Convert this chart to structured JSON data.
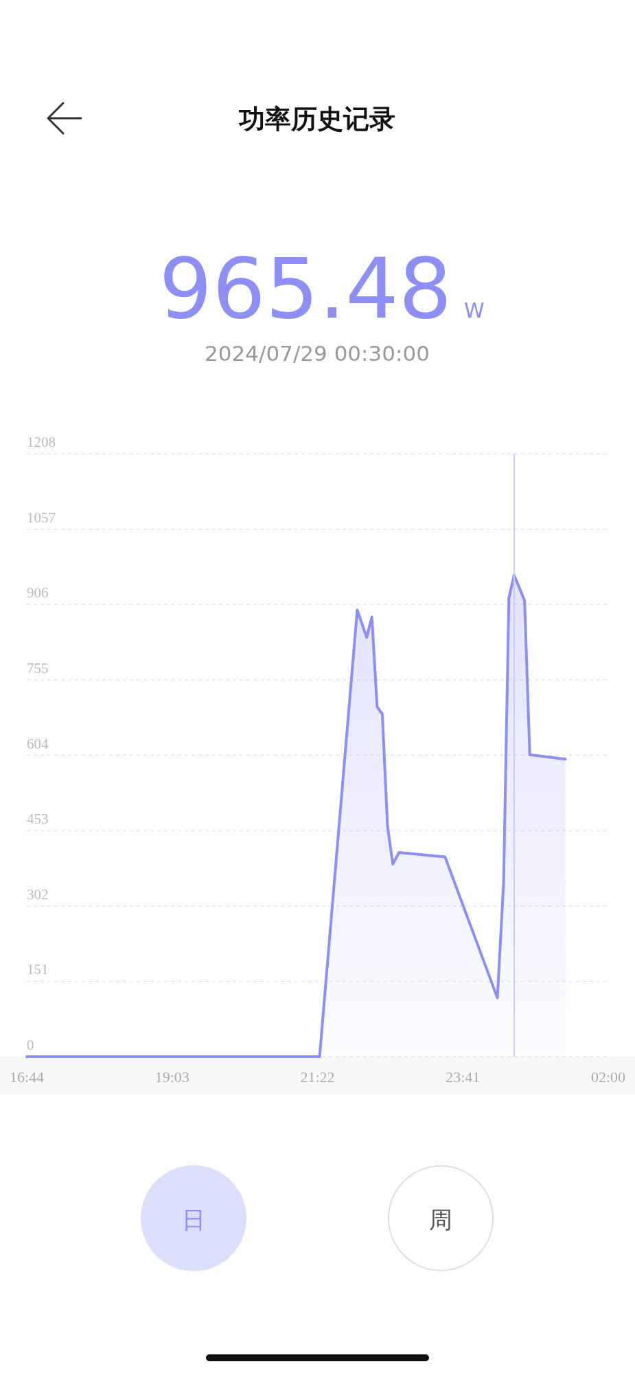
{
  "chart_data": {
    "type": "area",
    "title": "功率历史记录",
    "x": [
      "2024-07-28T16:44",
      "2024-07-28T21:24",
      "2024-07-28T22:00",
      "2024-07-28T22:09",
      "2024-07-28T22:14",
      "2024-07-28T22:19",
      "2024-07-28T22:24",
      "2024-07-28T22:29",
      "2024-07-28T22:34",
      "2024-07-28T22:40",
      "2024-07-28T23:24",
      "2024-07-29T00:14",
      "2024-07-29T00:20",
      "2024-07-29T00:25",
      "2024-07-29T00:30",
      "2024-07-29T00:40",
      "2024-07-29T00:45",
      "2024-07-29T01:19"
    ],
    "series": [
      {
        "color": "#8c8ff5",
        "values": [
          0,
          0,
          895,
          840,
          881,
          701,
          686,
          461,
          386,
          409,
          400,
          118,
          351,
          919,
          965,
          914,
          605,
          596
        ]
      }
    ],
    "xlim": [
      "2024-07-28T16:44",
      "2024-07-29T02:00"
    ],
    "xticks": [
      {
        "value": "2024-07-28T16:44",
        "label": "16:44"
      },
      {
        "value": "2024-07-28T19:03",
        "label": "19:03"
      },
      {
        "value": "2024-07-28T21:22",
        "label": "21:22"
      },
      {
        "value": "2024-07-28T23:41",
        "label": "23:41"
      },
      {
        "value": "2024-07-29T02:00",
        "label": "02:00"
      }
    ],
    "ylim": [
      0,
      1208
    ],
    "yticks": [
      0,
      151,
      302,
      453,
      604,
      755,
      906,
      1057,
      1208
    ],
    "grid": "y",
    "ref_lines": [
      {
        "axis": "x",
        "value": "2024-07-29T00:30",
        "color": "#c9cbf9"
      }
    ],
    "annotations": [
      "965.48",
      "W",
      "2024/07/29 00:30:00",
      "日",
      "周"
    ]
  }
}
